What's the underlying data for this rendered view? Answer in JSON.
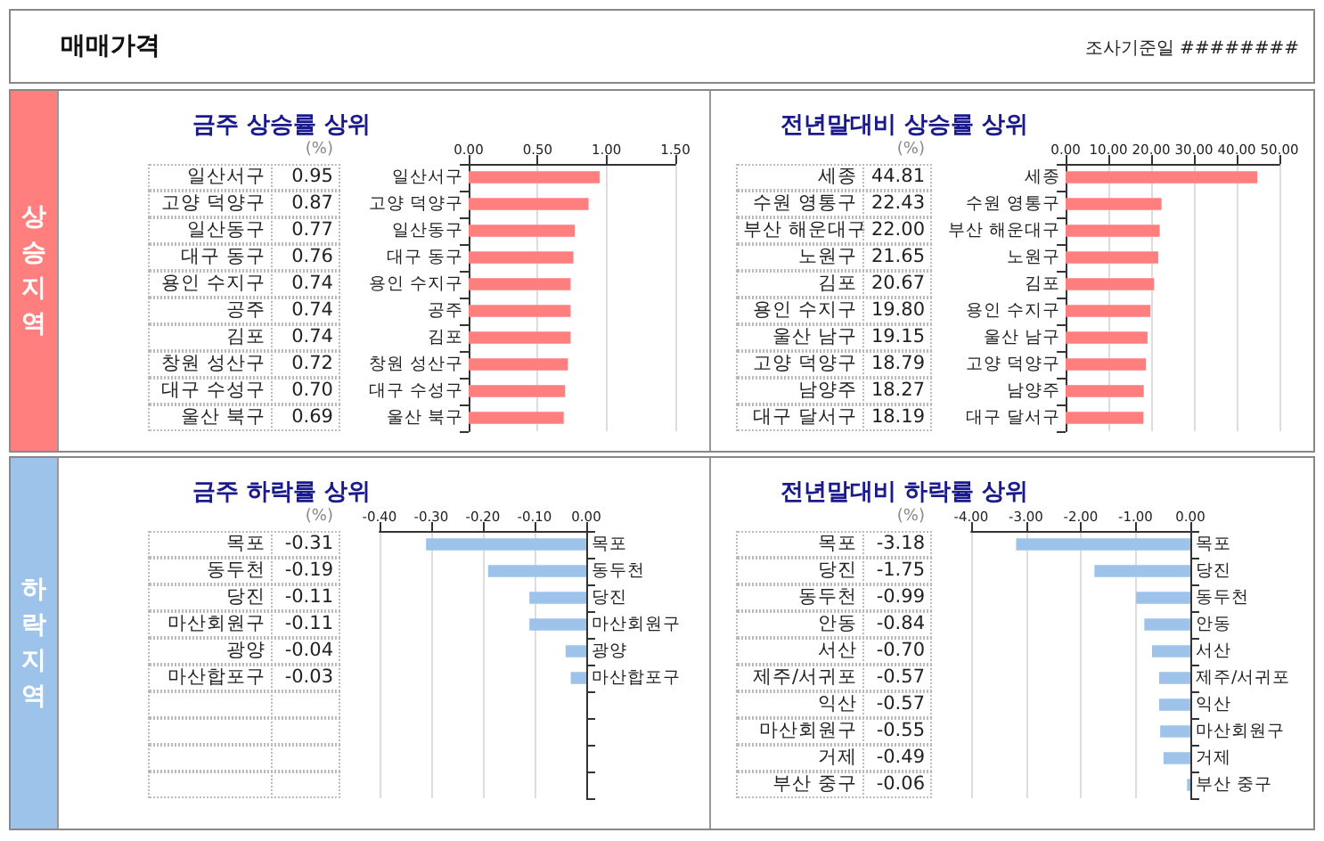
{
  "chart_data": [
    {
      "type": "bar",
      "orientation": "horizontal",
      "title": "금주 상승률 상위",
      "xlabel": "(%)",
      "annotations": [
        "매매가격",
        "조사기준일 ########",
        "상승지역"
      ],
      "categories": [
        "일산서구",
        "고양 덕양구",
        "일산동구",
        "대구 동구",
        "용인 수지구",
        "공주",
        "김포",
        "창원 성산구",
        "대구 수성구",
        "울산 북구"
      ],
      "values": [
        0.95,
        0.87,
        0.77,
        0.76,
        0.74,
        0.74,
        0.74,
        0.72,
        0.7,
        0.69
      ],
      "value_labels": [
        "0.95",
        "0.87",
        "0.77",
        "0.76",
        "0.74",
        "0.74",
        "0.74",
        "0.72",
        "0.70",
        "0.69"
      ],
      "color": "#ff7f7f",
      "xlim": [
        0,
        1.5
      ],
      "xticks": [
        {
          "value": 0,
          "label": "0.00"
        },
        {
          "value": 0.5,
          "label": "0.50"
        },
        {
          "value": 1,
          "label": "1.00"
        },
        {
          "value": 1.5,
          "label": "1.50"
        }
      ],
      "grid": "x"
    },
    {
      "type": "bar",
      "orientation": "horizontal",
      "title": "전년말대비 상승률 상위",
      "xlabel": "(%)",
      "categories": [
        "세종",
        "수원 영통구",
        "부산 해운대구",
        "노원구",
        "김포",
        "용인 수지구",
        "울산 남구",
        "고양 덕양구",
        "남양주",
        "대구 달서구"
      ],
      "values": [
        44.81,
        22.43,
        22.0,
        21.65,
        20.67,
        19.8,
        19.15,
        18.79,
        18.27,
        18.19
      ],
      "value_labels": [
        "44.81",
        "22.43",
        "22.00",
        "21.65",
        "20.67",
        "19.80",
        "19.15",
        "18.79",
        "18.27",
        "18.19"
      ],
      "color": "#ff7f7f",
      "xlim": [
        0,
        50
      ],
      "xticks": [
        {
          "value": 0,
          "label": "0.00"
        },
        {
          "value": 10,
          "label": "10.00"
        },
        {
          "value": 20,
          "label": "20.00"
        },
        {
          "value": 30,
          "label": "30.00"
        },
        {
          "value": 40,
          "label": "40.00"
        },
        {
          "value": 50,
          "label": "50.00"
        }
      ],
      "grid": "x"
    },
    {
      "type": "bar",
      "orientation": "horizontal",
      "title": "금주 하락률 상위",
      "xlabel": "(%)",
      "annotations": [
        "하락지역"
      ],
      "categories": [
        "목포",
        "동두천",
        "당진",
        "마산회원구",
        "광양",
        "마산합포구",
        null,
        null,
        null,
        null
      ],
      "values": [
        -0.31,
        -0.19,
        -0.11,
        -0.11,
        -0.04,
        -0.03,
        null,
        null,
        null,
        null
      ],
      "value_labels": [
        "-0.31",
        "-0.19",
        "-0.11",
        "-0.11",
        "-0.04",
        "-0.03",
        null,
        null,
        null,
        null
      ],
      "color": "#9dc3eb",
      "xlim": [
        -0.4,
        0
      ],
      "xticks": [
        {
          "value": -0.4,
          "label": "-0.40"
        },
        {
          "value": -0.3,
          "label": "-0.30"
        },
        {
          "value": -0.2,
          "label": "-0.20"
        },
        {
          "value": -0.1,
          "label": "-0.10"
        },
        {
          "value": 0,
          "label": "0.00"
        }
      ],
      "grid": "x"
    },
    {
      "type": "bar",
      "orientation": "horizontal",
      "title": "전년말대비 하락률 상위",
      "xlabel": "(%)",
      "categories": [
        "목포",
        "당진",
        "동두천",
        "안동",
        "서산",
        "제주/서귀포",
        "익산",
        "마산회원구",
        "거제",
        "부산 중구"
      ],
      "values": [
        -3.18,
        -1.75,
        -0.99,
        -0.84,
        -0.7,
        -0.57,
        -0.57,
        -0.55,
        -0.49,
        -0.06
      ],
      "value_labels": [
        "-3.18",
        "-1.75",
        "-0.99",
        "-0.84",
        "-0.70",
        "-0.57",
        "-0.57",
        "-0.55",
        "-0.49",
        "-0.06"
      ],
      "color": "#9dc3eb",
      "xlim": [
        -4,
        0
      ],
      "xticks": [
        {
          "value": -4,
          "label": "-4.00"
        },
        {
          "value": -3,
          "label": "-3.00"
        },
        {
          "value": -2,
          "label": "-2.00"
        },
        {
          "value": -1,
          "label": "-1.00"
        },
        {
          "value": 0,
          "label": "0.00"
        }
      ],
      "grid": "x"
    }
  ]
}
